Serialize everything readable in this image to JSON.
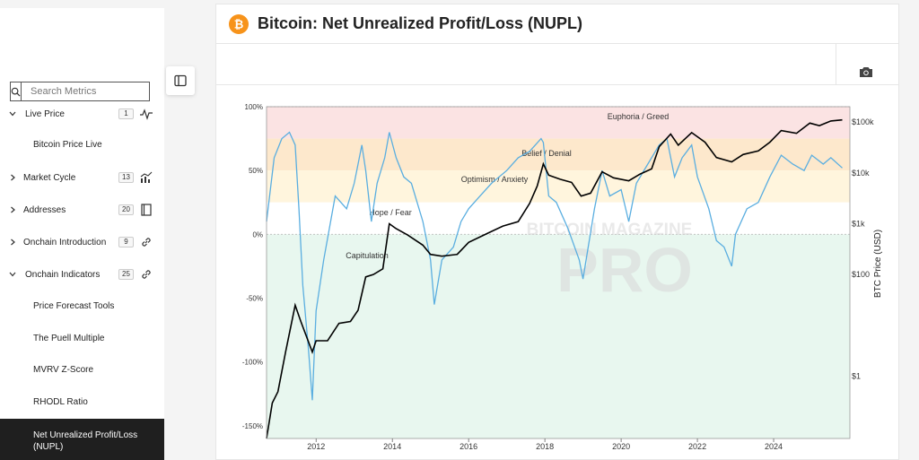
{
  "search": {
    "placeholder": "Search Metrics"
  },
  "sidebar": {
    "items": [
      {
        "label": "Live Price",
        "count": "1",
        "icon": "pulse-icon",
        "expanded": true
      },
      {
        "label": "Market Cycle",
        "count": "13",
        "icon": "chart-icon",
        "expanded": false
      },
      {
        "label": "Addresses",
        "count": "20",
        "icon": "book-icon",
        "expanded": false
      },
      {
        "label": "Onchain Introduction",
        "count": "9",
        "icon": "link-icon",
        "expanded": false
      },
      {
        "label": "Onchain Indicators",
        "count": "25",
        "icon": "link-icon",
        "expanded": true
      }
    ],
    "live_price_sub": [
      "Bitcoin Price Live"
    ],
    "onchain_sub": [
      "Price Forecast Tools",
      "The Puell Multiple",
      "MVRV Z-Score",
      "RHODL Ratio",
      "Net Unrealized Profit/Loss (NUPL)"
    ]
  },
  "header": {
    "title": "Bitcoin: Net Unrealized Profit/Loss (NUPL)"
  },
  "colors": {
    "bitcoin": "#f7931a",
    "nupl_line": "#5aaee0",
    "price_line": "#000000",
    "euphoria": "#fbe3e3",
    "belief": "#fde8cc",
    "optimism": "#fff5dd",
    "hope": "#ffffff",
    "capitulation": "#e8f7ef"
  },
  "watermark": {
    "top": "BITCOIN MAGAZINE",
    "bottom": "PRO"
  },
  "chart_data": {
    "type": "line",
    "y_left_ticks": [
      "100%",
      "50%",
      "0%",
      "-50%",
      "-100%",
      "-150%"
    ],
    "y_left_values": [
      1.0,
      0.5,
      0.0,
      -0.5,
      -1.0,
      -1.5
    ],
    "y_right_ticks": [
      "$100k",
      "$10k",
      "$1k",
      "$100",
      "$1"
    ],
    "y_right_values": [
      100000,
      10000,
      1000,
      100,
      1
    ],
    "y_right_label": "BTC Price (USD)",
    "x_ticks": [
      "2012",
      "2014",
      "2016",
      "2018",
      "2020",
      "2022",
      "2024"
    ],
    "xlim": [
      2010.7,
      2026.0
    ],
    "zones": [
      {
        "label": "Euphoria / Greed",
        "from": 0.75,
        "to": 1.0
      },
      {
        "label": "Belief / Denial",
        "from": 0.5,
        "to": 0.75
      },
      {
        "label": "Optimism / Anxiety",
        "from": 0.25,
        "to": 0.5
      },
      {
        "label": "Hope / Fear",
        "from": 0.0,
        "to": 0.25
      },
      {
        "label": "Capitulation",
        "from": -1.6,
        "to": 0.0
      }
    ],
    "series": [
      {
        "name": "NUPL",
        "x": [
          2010.7,
          2010.9,
          2011.1,
          2011.3,
          2011.45,
          2011.55,
          2011.65,
          2011.8,
          2011.9,
          2012.0,
          2012.2,
          2012.5,
          2012.8,
          2013.0,
          2013.2,
          2013.3,
          2013.45,
          2013.6,
          2013.8,
          2013.92,
          2014.1,
          2014.3,
          2014.5,
          2014.8,
          2015.0,
          2015.1,
          2015.3,
          2015.6,
          2015.8,
          2016.0,
          2016.3,
          2016.6,
          2017.0,
          2017.3,
          2017.6,
          2017.9,
          2017.96,
          2018.1,
          2018.3,
          2018.6,
          2018.9,
          2019.0,
          2019.3,
          2019.5,
          2019.7,
          2020.0,
          2020.2,
          2020.4,
          2020.7,
          2021.0,
          2021.2,
          2021.4,
          2021.6,
          2021.85,
          2022.0,
          2022.3,
          2022.5,
          2022.7,
          2022.9,
          2023.0,
          2023.3,
          2023.6,
          2023.9,
          2024.2,
          2024.5,
          2024.8,
          2025.0,
          2025.3,
          2025.5,
          2025.8
        ],
        "values": [
          0.1,
          0.6,
          0.75,
          0.8,
          0.7,
          0.2,
          -0.4,
          -0.9,
          -1.3,
          -0.6,
          -0.2,
          0.3,
          0.2,
          0.4,
          0.7,
          0.5,
          0.1,
          0.4,
          0.6,
          0.8,
          0.6,
          0.45,
          0.4,
          0.1,
          -0.2,
          -0.55,
          -0.2,
          -0.1,
          0.1,
          0.2,
          0.3,
          0.4,
          0.5,
          0.6,
          0.65,
          0.75,
          0.72,
          0.3,
          0.25,
          0.05,
          -0.2,
          -0.35,
          0.2,
          0.5,
          0.3,
          0.35,
          0.1,
          0.4,
          0.55,
          0.7,
          0.75,
          0.45,
          0.6,
          0.7,
          0.45,
          0.2,
          -0.05,
          -0.1,
          -0.25,
          0.0,
          0.2,
          0.25,
          0.45,
          0.62,
          0.55,
          0.5,
          0.62,
          0.55,
          0.6,
          0.52
        ]
      },
      {
        "name": "BTC Price",
        "x": [
          2010.7,
          2010.85,
          2011.0,
          2011.2,
          2011.45,
          2011.6,
          2011.9,
          2012.0,
          2012.3,
          2012.6,
          2012.9,
          2013.1,
          2013.3,
          2013.5,
          2013.75,
          2013.92,
          2014.1,
          2014.4,
          2014.8,
          2015.0,
          2015.3,
          2015.7,
          2016.0,
          2016.5,
          2016.9,
          2017.3,
          2017.6,
          2017.8,
          2017.96,
          2018.1,
          2018.4,
          2018.7,
          2018.95,
          2019.2,
          2019.5,
          2019.8,
          2020.2,
          2020.5,
          2020.8,
          2021.0,
          2021.3,
          2021.5,
          2021.85,
          2022.2,
          2022.5,
          2022.9,
          2023.2,
          2023.6,
          2023.9,
          2024.2,
          2024.6,
          2024.95,
          2025.2,
          2025.5,
          2025.8
        ],
        "values": [
          0.06,
          0.3,
          0.5,
          3,
          25,
          12,
          3,
          5,
          5,
          11,
          12,
          20,
          90,
          100,
          130,
          1000,
          800,
          600,
          380,
          250,
          230,
          250,
          430,
          650,
          900,
          1100,
          2500,
          5500,
          15000,
          9000,
          7500,
          6500,
          3500,
          4000,
          10500,
          8000,
          7000,
          9500,
          12000,
          33000,
          58000,
          35000,
          62000,
          40000,
          20000,
          16500,
          23000,
          27000,
          40000,
          68000,
          60000,
          95000,
          85000,
          105000,
          110000
        ]
      }
    ]
  }
}
